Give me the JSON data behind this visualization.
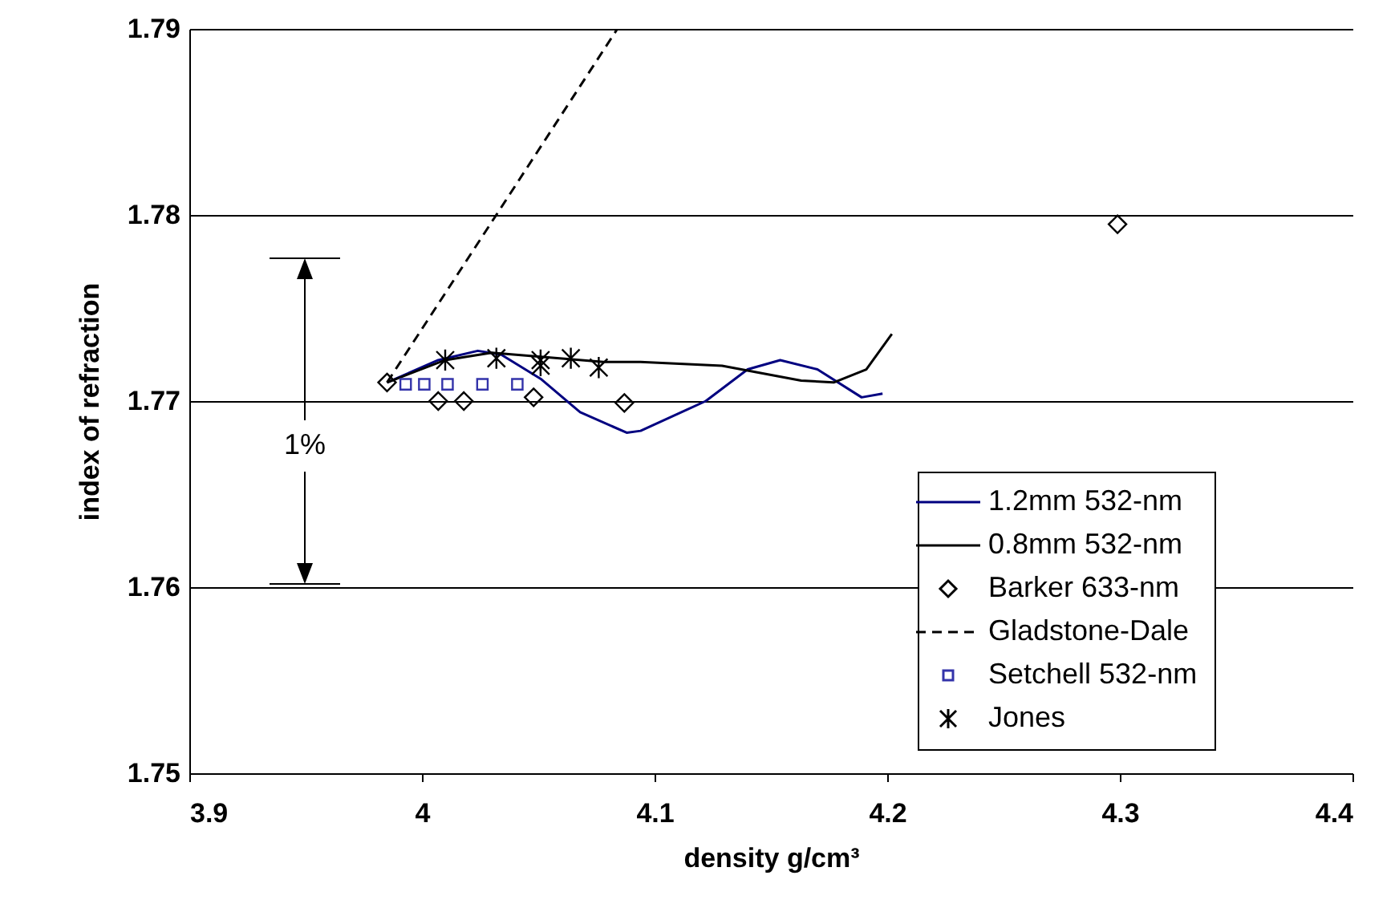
{
  "chart_data": {
    "type": "line",
    "xlabel": "density g/cm³",
    "ylabel": "index of refraction",
    "xlim": [
      3.9,
      4.4
    ],
    "xticks": [
      3.9,
      4,
      4.1,
      4.2,
      4.3,
      4.4
    ],
    "ylim": [
      1.75,
      1.79
    ],
    "yticks": [
      1.75,
      1.76,
      1.77,
      1.78,
      1.79
    ],
    "grid": "y",
    "legend": "bottom right",
    "annotations": [
      "1%"
    ],
    "series": [
      {
        "name": "1.2mm 532-nm",
        "color": "#000080",
        "marker": "none",
        "line_style": "solid",
        "x": [
          3.985,
          4.007,
          4.024,
          4.034,
          4.051,
          4.068,
          4.088,
          4.094,
          4.122,
          4.14,
          4.154,
          4.17,
          4.189,
          4.198
        ],
        "values": [
          1.771,
          1.7722,
          1.7727,
          1.7725,
          1.7712,
          1.7694,
          1.7683,
          1.7684,
          1.77,
          1.7717,
          1.7722,
          1.7717,
          1.7702,
          1.7704
        ]
      },
      {
        "name": "0.8mm 532-nm",
        "color": "#000000",
        "marker": "none",
        "line_style": "solid",
        "x": [
          3.985,
          4.01,
          4.03,
          4.078,
          4.094,
          4.129,
          4.163,
          4.177,
          4.191,
          4.202
        ],
        "values": [
          1.771,
          1.7722,
          1.7726,
          1.7721,
          1.7721,
          1.7719,
          1.7711,
          1.771,
          1.7717,
          1.7736
        ]
      },
      {
        "name": "Barker 633-nm",
        "type": "scatter",
        "color": "#000000",
        "marker": "diamond",
        "x": [
          3.985,
          4.007,
          4.018,
          4.048,
          4.087,
          4.299
        ],
        "values": [
          1.771,
          1.77,
          1.77,
          1.7702,
          1.7699,
          1.7795
        ]
      },
      {
        "name": "Gladstone-Dale",
        "color": "#000000",
        "marker": "none",
        "line_style": "dashed",
        "x": [
          3.985,
          4.033,
          4.084
        ],
        "values": [
          1.771,
          1.7802,
          1.79
        ]
      },
      {
        "name": "Setchell 532-nm",
        "type": "scatter",
        "color": "#3333aa",
        "marker": "square",
        "x": [
          3.993,
          4.001,
          4.011,
          4.026,
          4.041
        ],
        "values": [
          1.7709,
          1.7709,
          1.7709,
          1.7709,
          1.7709
        ]
      },
      {
        "name": "Jones",
        "type": "scatter",
        "color": "#000000",
        "marker": "cross",
        "x": [
          4.01,
          4.032,
          4.051,
          4.051,
          4.064,
          4.076
        ],
        "values": [
          1.7722,
          1.7723,
          1.7722,
          1.7719,
          1.7723,
          1.7718
        ]
      }
    ]
  }
}
